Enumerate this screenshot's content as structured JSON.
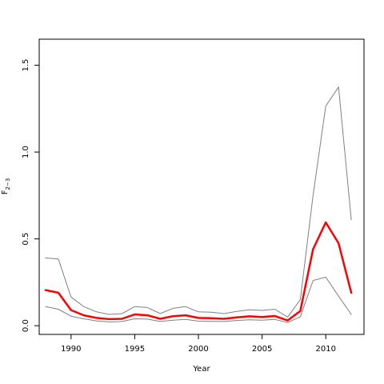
{
  "chart_data": {
    "type": "line",
    "xlabel": "Year",
    "ylabel_main": "F",
    "ylabel_sub": "2−3",
    "xlim": [
      1987.5,
      2013
    ],
    "ylim": [
      -0.05,
      1.65
    ],
    "xticks": [
      1990,
      1995,
      2000,
      2005,
      2010
    ],
    "yticks": [
      0.0,
      0.5,
      1.0,
      1.5
    ],
    "ytick_labels": [
      "0.0",
      "0.5",
      "1.0",
      "1.5"
    ],
    "x": [
      1988,
      1989,
      1990,
      1991,
      1992,
      1993,
      1994,
      1995,
      1996,
      1997,
      1998,
      1999,
      2000,
      2001,
      2002,
      2003,
      2004,
      2005,
      2006,
      2007,
      2008,
      2009,
      2010,
      2011,
      2012
    ],
    "series": [
      {
        "color": "#ff0000",
        "width": 2.5,
        "values": [
          0.205,
          0.19,
          0.09,
          0.06,
          0.045,
          0.038,
          0.04,
          0.065,
          0.06,
          0.04,
          0.055,
          0.06,
          0.045,
          0.043,
          0.04,
          0.048,
          0.054,
          0.05,
          0.056,
          0.03,
          0.085,
          0.44,
          0.595,
          0.475,
          0.19
        ]
      },
      {
        "color": "#808080",
        "width": 1,
        "values": [
          0.39,
          0.385,
          0.165,
          0.11,
          0.08,
          0.065,
          0.07,
          0.11,
          0.105,
          0.07,
          0.1,
          0.11,
          0.08,
          0.078,
          0.07,
          0.082,
          0.092,
          0.088,
          0.095,
          0.05,
          0.15,
          0.75,
          1.265,
          1.375,
          0.61
        ]
      },
      {
        "color": "#808080",
        "width": 1,
        "values": [
          0.11,
          0.095,
          0.055,
          0.04,
          0.028,
          0.022,
          0.024,
          0.04,
          0.038,
          0.024,
          0.032,
          0.036,
          0.026,
          0.025,
          0.024,
          0.03,
          0.034,
          0.032,
          0.036,
          0.018,
          0.052,
          0.26,
          0.28,
          0.17,
          0.065
        ]
      }
    ]
  }
}
